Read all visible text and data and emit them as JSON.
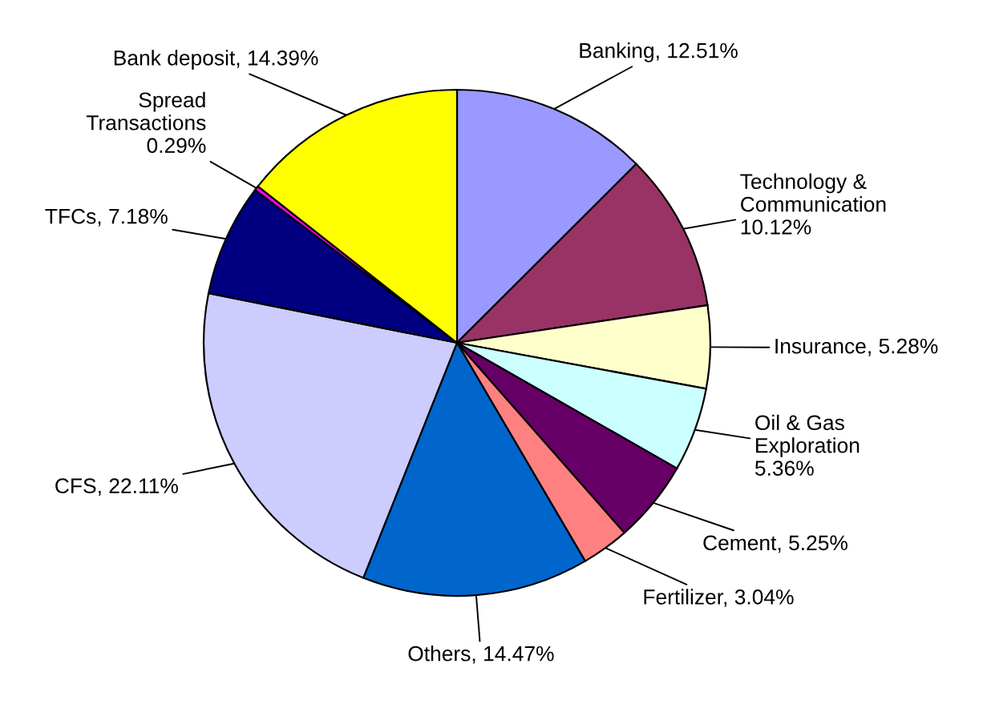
{
  "chart_data": {
    "type": "pie",
    "categories": [
      "Banking",
      "Technology &\nCommunication",
      "Insurance",
      "Oil & Gas\nExploration",
      "Cement",
      "Fertilizer",
      "Others",
      "CFS",
      "TFCs",
      "Spread\nTransactions",
      "Bank deposit"
    ],
    "values": [
      12.51,
      10.12,
      5.28,
      5.36,
      5.25,
      3.04,
      14.47,
      22.11,
      7.18,
      0.29,
      14.39
    ],
    "value_labels": [
      "12.51%",
      "10.12%",
      "5.28%",
      "5.36%",
      "5.25%",
      "3.04%",
      "14.47%",
      "22.11%",
      "7.18%",
      "0.29%",
      "14.39%"
    ],
    "colors": [
      "#9999ff",
      "#993366",
      "#ffffcc",
      "#ccffff",
      "#660066",
      "#ff8080",
      "#0066cc",
      "#ccccff",
      "#000080",
      "#ff00ff",
      "#ffff00"
    ],
    "legend": false
  }
}
